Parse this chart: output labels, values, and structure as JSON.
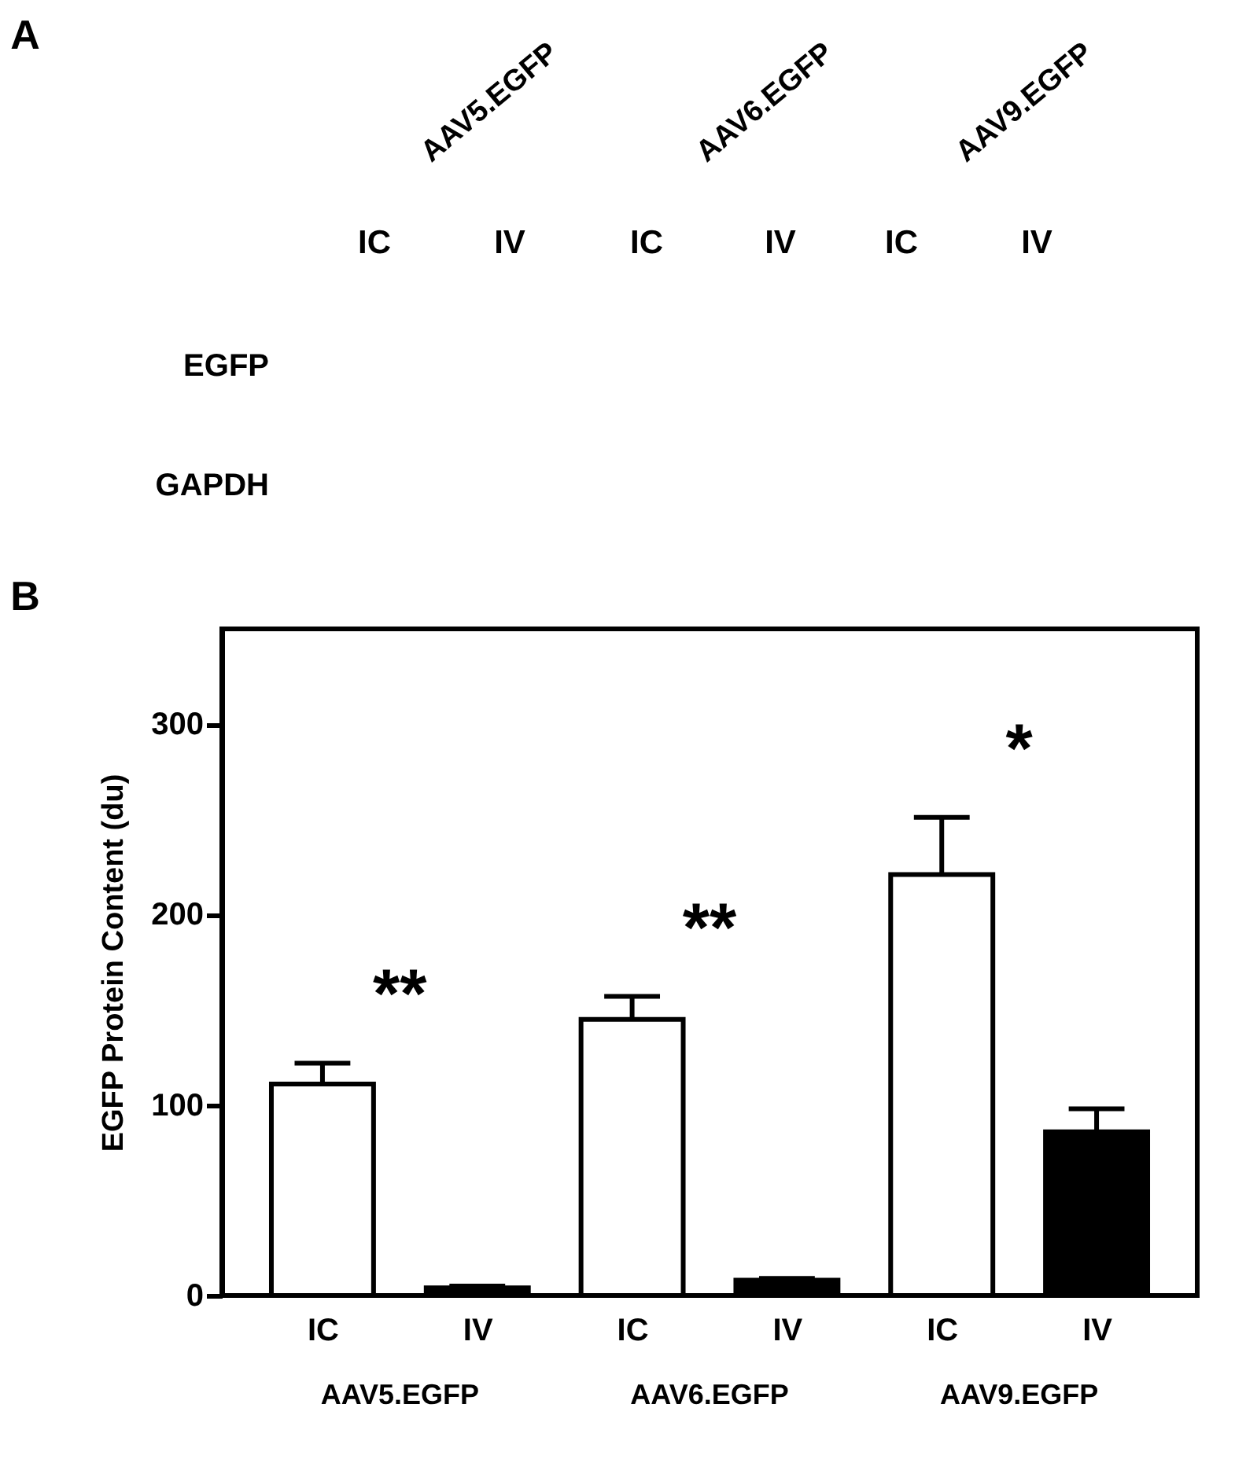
{
  "chart_data": [
    {
      "type": "other",
      "annotations": [
        "A",
        "AAV5.EGFP",
        "AAV6.EGFP",
        "AAV9.EGFP",
        "IC",
        "IV",
        "IC",
        "IV",
        "IC",
        "IV",
        "EGFP",
        "GAPDH"
      ]
    },
    {
      "type": "bar",
      "ylabel": "EGFP Protein Content (du)",
      "categories": [
        "IC",
        "IV",
        "IC",
        "IV",
        "IC",
        "IV"
      ],
      "values": [
        111,
        4,
        145,
        8,
        221,
        86
      ],
      "colors": [
        "#ffffff",
        "#000000",
        "#ffffff",
        "#000000",
        "#ffffff",
        "#000000"
      ],
      "errors": [
        [
          111,
          122
        ],
        [
          4,
          5
        ],
        [
          145,
          157
        ],
        [
          8,
          9
        ],
        [
          221,
          251
        ],
        [
          86,
          98
        ]
      ],
      "ylim": [
        0,
        350
      ],
      "yticks": [
        0,
        100,
        200,
        300
      ],
      "grid": false,
      "legend": false,
      "annotations": [
        "B",
        "AAV5.EGFP",
        "AAV6.EGFP",
        "AAV9.EGFP",
        "**",
        "**",
        "*"
      ]
    }
  ]
}
